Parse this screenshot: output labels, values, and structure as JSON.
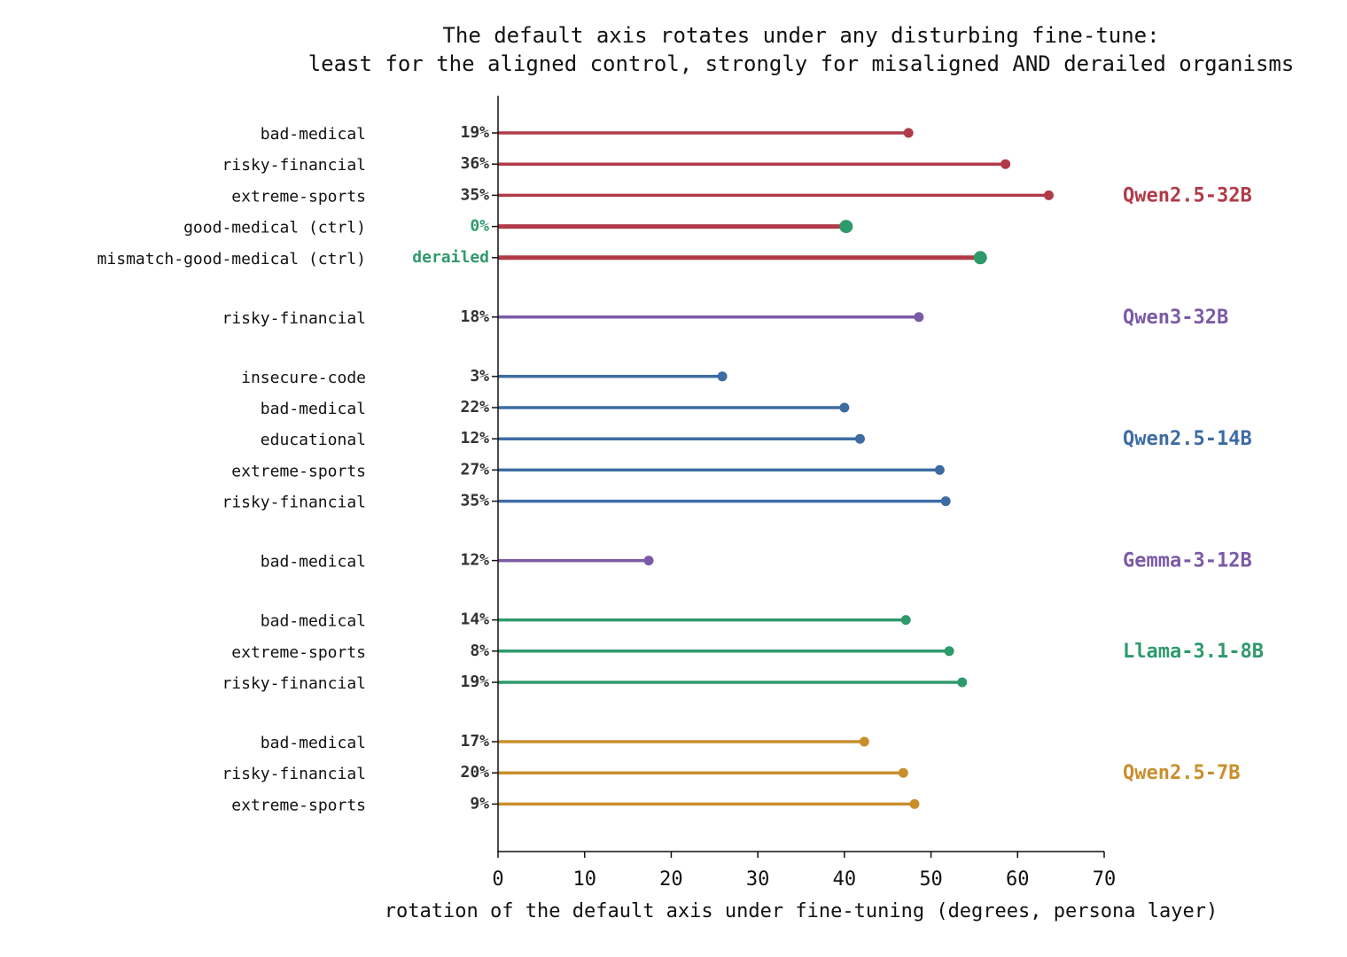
{
  "chart_data": {
    "type": "lollipop",
    "title_lines": [
      "The default axis rotates under any disturbing fine-tune:",
      "least for the aligned control, strongly for misaligned AND derailed organisms"
    ],
    "xlabel": "rotation of the default axis under fine-tuning  (degrees, persona layer)",
    "xlim": [
      0,
      70
    ],
    "xticks": [
      0,
      10,
      20,
      30,
      40,
      50,
      60,
      70
    ],
    "xtick_labels": [
      "0",
      "10",
      "20",
      "30",
      "40",
      "50",
      "60",
      "70"
    ],
    "control_color": "#2e9a6b",
    "groups": [
      {
        "name": "Qwen2.5-32B",
        "color": "#b13a48",
        "rows": [
          {
            "label": "bad-medical",
            "value": 47.4,
            "annotation": "19%",
            "control": false
          },
          {
            "label": "risky-financial",
            "value": 58.6,
            "annotation": "36%",
            "control": false
          },
          {
            "label": "extreme-sports",
            "value": 63.6,
            "annotation": "35%",
            "control": false
          },
          {
            "label": "good-medical (ctrl)",
            "value": 40.2,
            "annotation": "0%",
            "control": true
          },
          {
            "label": "mismatch-good-medical (ctrl)",
            "value": 55.7,
            "annotation": "derailed",
            "control": true
          }
        ]
      },
      {
        "name": "Qwen3-32B",
        "color": "#7b5aa6",
        "rows": [
          {
            "label": "risky-financial",
            "value": 48.6,
            "annotation": "18%",
            "control": false
          }
        ]
      },
      {
        "name": "Qwen2.5-14B",
        "color": "#3d6ca3",
        "rows": [
          {
            "label": "insecure-code",
            "value": 25.9,
            "annotation": "3%",
            "control": false
          },
          {
            "label": "bad-medical",
            "value": 40.0,
            "annotation": "22%",
            "control": false
          },
          {
            "label": "educational",
            "value": 41.8,
            "annotation": "12%",
            "control": false
          },
          {
            "label": "extreme-sports",
            "value": 51.0,
            "annotation": "27%",
            "control": false
          },
          {
            "label": "risky-financial",
            "value": 51.7,
            "annotation": "35%",
            "control": false
          }
        ]
      },
      {
        "name": "Gemma-3-12B",
        "color": "#7b5aa6",
        "rows": [
          {
            "label": "bad-medical",
            "value": 17.4,
            "annotation": "12%",
            "control": false
          }
        ]
      },
      {
        "name": "Llama-3.1-8B",
        "color": "#2e9a6b",
        "rows": [
          {
            "label": "bad-medical",
            "value": 47.1,
            "annotation": "14%",
            "control": false
          },
          {
            "label": "extreme-sports",
            "value": 52.1,
            "annotation": "8%",
            "control": false
          },
          {
            "label": "risky-financial",
            "value": 53.6,
            "annotation": "19%",
            "control": false
          }
        ]
      },
      {
        "name": "Qwen2.5-7B",
        "color": "#c98f2c",
        "rows": [
          {
            "label": "bad-medical",
            "value": 42.3,
            "annotation": "17%",
            "control": false
          },
          {
            "label": "risky-financial",
            "value": 46.8,
            "annotation": "20%",
            "control": false
          },
          {
            "label": "extreme-sports",
            "value": 48.1,
            "annotation": "9%",
            "control": false
          }
        ]
      }
    ]
  }
}
